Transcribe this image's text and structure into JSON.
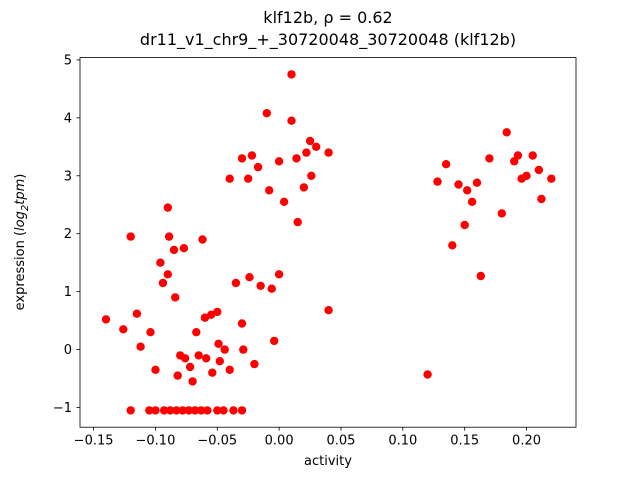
{
  "title": {
    "line1": "klf12b, ρ = 0.62",
    "line2": "dr11_v1_chr9_+_30720048_30720048 (klf12b)"
  },
  "axes": {
    "xlabel": "activity",
    "ylabel_prefix": "expression (",
    "ylabel_math1": "log",
    "ylabel_sub": "2",
    "ylabel_math2": "tpm",
    "ylabel_suffix": ")"
  },
  "chart_data": {
    "type": "scatter",
    "title": "klf12b, ρ = 0.62\ndr11_v1_chr9_+_30720048_30720048 (klf12b)",
    "xlabel": "activity",
    "ylabel": "expression (log2 tpm)",
    "marker_color": "#ff0000",
    "marker_radius_px": 4.2,
    "grid": false,
    "legend": false,
    "xlim": [
      -0.161,
      0.24
    ],
    "ylim": [
      -1.34,
      5.04
    ],
    "xticks": [
      -0.15,
      -0.1,
      -0.05,
      0.0,
      0.05,
      0.1,
      0.15,
      0.2
    ],
    "xtick_labels": [
      "−0.15",
      "−0.10",
      "−0.05",
      "0.00",
      "0.05",
      "0.10",
      "0.15",
      "0.20"
    ],
    "yticks": [
      -1,
      0,
      1,
      2,
      3,
      4,
      5
    ],
    "ytick_labels": [
      "−1",
      "0",
      "1",
      "2",
      "3",
      "4",
      "5"
    ],
    "points": [
      [
        -0.14,
        0.52
      ],
      [
        -0.126,
        0.35
      ],
      [
        -0.12,
        1.95
      ],
      [
        -0.115,
        0.62
      ],
      [
        -0.112,
        0.05
      ],
      [
        -0.104,
        0.3
      ],
      [
        -0.1,
        -0.35
      ],
      [
        -0.096,
        1.5
      ],
      [
        -0.094,
        1.15
      ],
      [
        -0.09,
        2.45
      ],
      [
        -0.089,
        1.95
      ],
      [
        -0.09,
        1.3
      ],
      [
        -0.085,
        1.72
      ],
      [
        -0.084,
        0.9
      ],
      [
        -0.082,
        -0.45
      ],
      [
        -0.08,
        -0.1
      ],
      [
        -0.077,
        1.75
      ],
      [
        -0.076,
        -0.15
      ],
      [
        -0.072,
        -0.3
      ],
      [
        -0.07,
        -0.55
      ],
      [
        -0.067,
        0.3
      ],
      [
        -0.065,
        -0.1
      ],
      [
        -0.062,
        1.9
      ],
      [
        -0.06,
        0.55
      ],
      [
        -0.059,
        -0.15
      ],
      [
        -0.055,
        0.6
      ],
      [
        -0.054,
        -0.4
      ],
      [
        -0.05,
        0.65
      ],
      [
        -0.049,
        0.1
      ],
      [
        -0.048,
        -0.2
      ],
      [
        -0.044,
        0.0
      ],
      [
        -0.04,
        2.95
      ],
      [
        -0.04,
        -0.35
      ],
      [
        -0.035,
        1.15
      ],
      [
        -0.03,
        3.3
      ],
      [
        -0.03,
        0.45
      ],
      [
        -0.029,
        0.0
      ],
      [
        -0.025,
        2.95
      ],
      [
        -0.024,
        1.25
      ],
      [
        -0.022,
        3.35
      ],
      [
        -0.02,
        -0.25
      ],
      [
        -0.017,
        3.15
      ],
      [
        -0.015,
        1.1
      ],
      [
        -0.01,
        4.08
      ],
      [
        -0.008,
        2.75
      ],
      [
        -0.006,
        1.05
      ],
      [
        -0.004,
        0.15
      ],
      [
        0.0,
        3.25
      ],
      [
        0.0,
        1.3
      ],
      [
        0.004,
        2.55
      ],
      [
        0.01,
        4.75
      ],
      [
        0.01,
        3.95
      ],
      [
        0.014,
        3.3
      ],
      [
        0.015,
        2.2
      ],
      [
        0.02,
        2.8
      ],
      [
        0.022,
        3.4
      ],
      [
        0.025,
        3.6
      ],
      [
        0.026,
        3.0
      ],
      [
        0.03,
        3.5
      ],
      [
        0.04,
        3.4
      ],
      [
        0.04,
        0.68
      ],
      [
        0.12,
        -0.43
      ],
      [
        0.128,
        2.9
      ],
      [
        0.135,
        3.2
      ],
      [
        0.14,
        1.8
      ],
      [
        0.145,
        2.85
      ],
      [
        0.15,
        2.15
      ],
      [
        0.152,
        2.75
      ],
      [
        0.156,
        2.55
      ],
      [
        0.16,
        2.88
      ],
      [
        0.163,
        1.27
      ],
      [
        0.17,
        3.3
      ],
      [
        0.18,
        2.35
      ],
      [
        0.184,
        3.75
      ],
      [
        0.19,
        3.25
      ],
      [
        0.193,
        3.35
      ],
      [
        0.196,
        2.95
      ],
      [
        0.2,
        3.0
      ],
      [
        0.205,
        3.35
      ],
      [
        0.21,
        3.1
      ],
      [
        0.212,
        2.6
      ],
      [
        0.22,
        2.95
      ],
      [
        -0.12,
        -1.05
      ],
      [
        -0.105,
        -1.05
      ],
      [
        -0.1,
        -1.05
      ],
      [
        -0.093,
        -1.05
      ],
      [
        -0.088,
        -1.05
      ],
      [
        -0.083,
        -1.05
      ],
      [
        -0.078,
        -1.05
      ],
      [
        -0.073,
        -1.05
      ],
      [
        -0.068,
        -1.05
      ],
      [
        -0.063,
        -1.05
      ],
      [
        -0.058,
        -1.05
      ],
      [
        -0.05,
        -1.05
      ],
      [
        -0.045,
        -1.05
      ],
      [
        -0.037,
        -1.05
      ],
      [
        -0.03,
        -1.05
      ]
    ]
  }
}
